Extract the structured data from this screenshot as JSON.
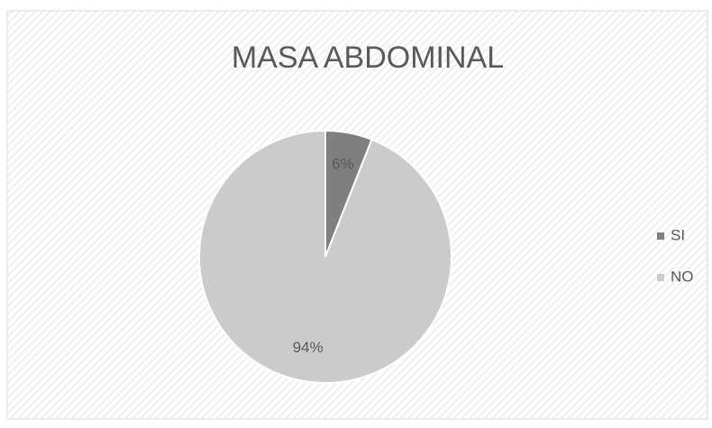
{
  "chart_data": {
    "type": "pie",
    "title": "MASA ABDOMINAL",
    "categories": [
      "SI",
      "NO"
    ],
    "values": [
      6,
      94
    ],
    "value_labels": [
      "6%",
      "94%"
    ],
    "colors": [
      "#7f7f7f",
      "#cbcbcb"
    ],
    "legend": "right"
  }
}
